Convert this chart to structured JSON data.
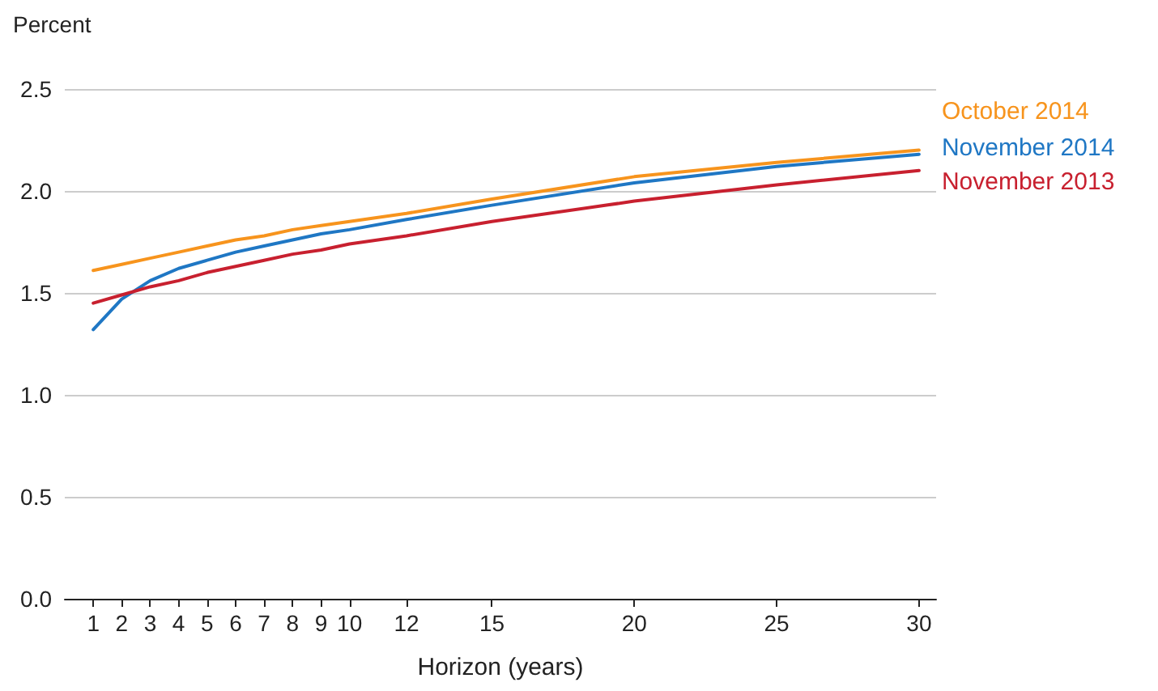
{
  "chart_data": {
    "type": "line",
    "ylabel": "Percent",
    "xlabel": "Horizon (years)",
    "x": [
      1,
      2,
      3,
      4,
      5,
      6,
      7,
      8,
      9,
      10,
      12,
      15,
      20,
      25,
      30
    ],
    "series": [
      {
        "name": "October 2014",
        "color": "#f7941d",
        "values": [
          1.61,
          1.64,
          1.67,
          1.7,
          1.73,
          1.76,
          1.78,
          1.81,
          1.83,
          1.85,
          1.89,
          1.96,
          2.07,
          2.14,
          2.2
        ]
      },
      {
        "name": "November 2014",
        "color": "#1f77c4",
        "values": [
          1.32,
          1.47,
          1.56,
          1.62,
          1.66,
          1.7,
          1.73,
          1.76,
          1.79,
          1.81,
          1.86,
          1.93,
          2.04,
          2.12,
          2.18
        ]
      },
      {
        "name": "November 2013",
        "color": "#c8202f",
        "values": [
          1.45,
          1.49,
          1.53,
          1.56,
          1.6,
          1.63,
          1.66,
          1.69,
          1.71,
          1.74,
          1.78,
          1.85,
          1.95,
          2.03,
          2.1
        ]
      }
    ],
    "xlim": [
      0,
      30.6
    ],
    "xticks": [
      1,
      2,
      3,
      4,
      5,
      6,
      7,
      8,
      9,
      10,
      12,
      15,
      20,
      25,
      30
    ],
    "ylim": [
      0,
      2.5
    ],
    "yticks": [
      {
        "value": 0,
        "label": "0.0"
      },
      0.5,
      {
        "value": 1,
        "label": "1.0"
      },
      1.5,
      {
        "value": 2,
        "label": "2.0"
      },
      2.5
    ],
    "grid": "y",
    "legend": false,
    "marker": "none",
    "line_style": "solid"
  }
}
